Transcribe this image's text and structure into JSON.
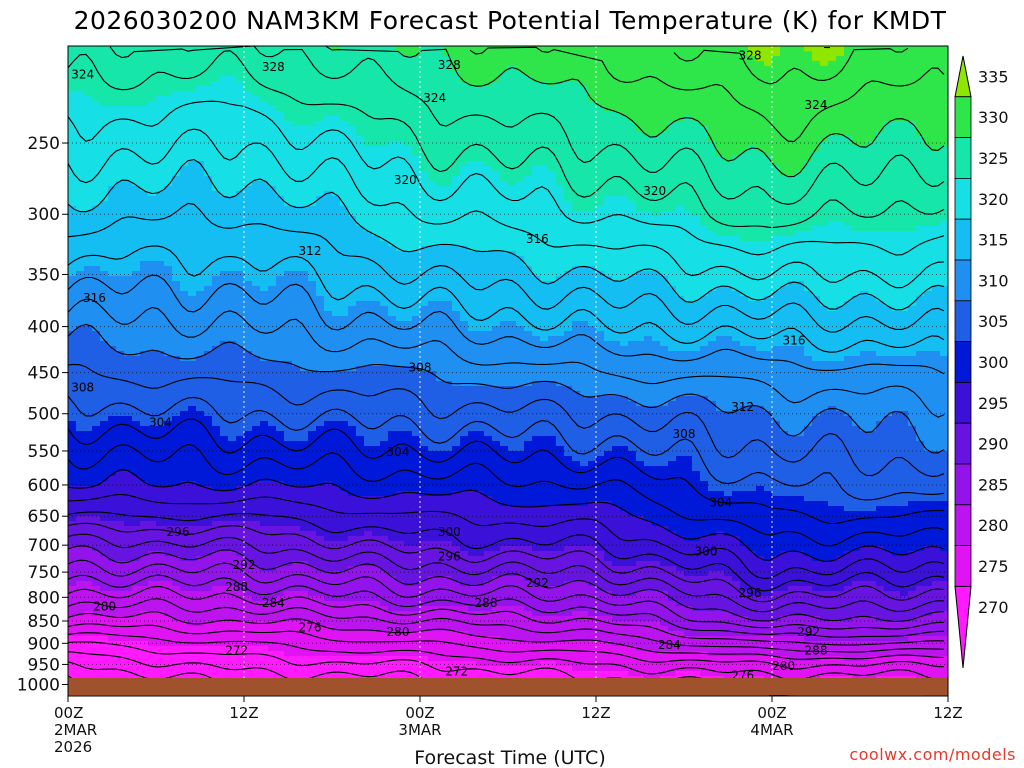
{
  "chart_data": {
    "type": "heatmap",
    "title": "2026030200 NAM3KM Forecast Potential Temperature (K) for KMDT",
    "xlabel": "Forecast Time (UTC)",
    "ylabel": "",
    "y_scale": "pressure (log), hPa, inverted",
    "ylim": [
      1030,
      195
    ],
    "y_ticks": [
      250,
      300,
      350,
      400,
      450,
      500,
      550,
      600,
      650,
      700,
      750,
      800,
      850,
      900,
      950,
      1000
    ],
    "xlim_hours": [
      0,
      60
    ],
    "x_ticks": [
      {
        "hour": 0,
        "line1": "00Z",
        "line2": "2MAR",
        "line3": "2026"
      },
      {
        "hour": 12,
        "line1": "12Z",
        "line2": "",
        "line3": ""
      },
      {
        "hour": 24,
        "line1": "00Z",
        "line2": "3MAR",
        "line3": ""
      },
      {
        "hour": 36,
        "line1": "12Z",
        "line2": "",
        "line3": ""
      },
      {
        "hour": 48,
        "line1": "00Z",
        "line2": "4MAR",
        "line3": ""
      },
      {
        "hour": 60,
        "line1": "12Z",
        "line2": "",
        "line3": ""
      }
    ],
    "colorbar": {
      "levels": [
        335,
        330,
        325,
        320,
        315,
        310,
        305,
        300,
        295,
        290,
        285,
        280,
        275,
        270
      ],
      "colors": [
        "#8fe600",
        "#2ee64a",
        "#16e6aa",
        "#16e0e6",
        "#14bdf2",
        "#1f90f2",
        "#1e5fe6",
        "#0018d8",
        "#3b10d8",
        "#6814e0",
        "#9214ea",
        "#bb14ee",
        "#e014f2",
        "#ff1aff"
      ]
    },
    "contour_interval_K": 2,
    "contour_label_values": [
      324,
      328,
      320,
      316,
      312,
      308,
      304,
      300,
      296,
      292,
      288,
      284,
      280,
      276,
      272
    ],
    "profile_levels_hPa": [
      1000,
      950,
      900,
      850,
      800,
      750,
      700,
      650,
      600,
      550,
      500,
      450,
      400,
      350,
      300,
      250,
      200
    ],
    "profile_hours": [
      0,
      12,
      24,
      36,
      48,
      60
    ],
    "theta_profiles_K": {
      "0": [
        267,
        270,
        274,
        279,
        283,
        287,
        291,
        296,
        300,
        302,
        305,
        308,
        311,
        315,
        319,
        323,
        327
      ],
      "12": [
        270,
        273,
        276,
        280,
        284,
        288,
        292,
        296,
        300,
        303,
        306,
        309,
        312,
        315,
        318,
        322,
        327
      ],
      "24": [
        271,
        274,
        278,
        282,
        287,
        291,
        295,
        298,
        301,
        304,
        307,
        310,
        314,
        318,
        322,
        326,
        330
      ],
      "36": [
        273,
        276,
        280,
        284,
        288,
        292,
        296,
        299,
        302,
        305,
        308,
        312,
        316,
        320,
        324,
        328,
        332
      ],
      "48": [
        274,
        278,
        284,
        290,
        294,
        298,
        301,
        304,
        306,
        308,
        310,
        313,
        317,
        322,
        327,
        331,
        335
      ],
      "60": [
        274,
        278,
        284,
        289,
        293,
        297,
        301,
        304,
        307,
        309,
        311,
        314,
        318,
        322,
        325,
        329,
        333
      ]
    },
    "contour_labels": [
      {
        "value": 324,
        "hour": 1.0,
        "p": 210
      },
      {
        "value": 328,
        "hour": 14.0,
        "p": 206
      },
      {
        "value": 328,
        "hour": 26.0,
        "p": 205
      },
      {
        "value": 324,
        "hour": 25.0,
        "p": 223
      },
      {
        "value": 320,
        "hour": 23.0,
        "p": 275
      },
      {
        "value": 316,
        "hour": 1.8,
        "p": 372
      },
      {
        "value": 312,
        "hour": 16.5,
        "p": 330
      },
      {
        "value": 316,
        "hour": 32.0,
        "p": 320
      },
      {
        "value": 320,
        "hour": 40.0,
        "p": 283
      },
      {
        "value": 328,
        "hour": 46.5,
        "p": 200
      },
      {
        "value": 324,
        "hour": 51.0,
        "p": 227
      },
      {
        "value": 316,
        "hour": 49.5,
        "p": 415
      },
      {
        "value": 312,
        "hour": 46.0,
        "p": 492
      },
      {
        "value": 308,
        "hour": 1.0,
        "p": 468
      },
      {
        "value": 308,
        "hour": 24.0,
        "p": 445
      },
      {
        "value": 304,
        "hour": 6.3,
        "p": 512
      },
      {
        "value": 304,
        "hour": 22.5,
        "p": 552
      },
      {
        "value": 308,
        "hour": 42.0,
        "p": 527
      },
      {
        "value": 304,
        "hour": 44.5,
        "p": 628
      },
      {
        "value": 300,
        "hour": 26.0,
        "p": 678
      },
      {
        "value": 296,
        "hour": 7.5,
        "p": 678
      },
      {
        "value": 296,
        "hour": 26.0,
        "p": 722
      },
      {
        "value": 300,
        "hour": 43.5,
        "p": 712
      },
      {
        "value": 292,
        "hour": 12.0,
        "p": 737
      },
      {
        "value": 292,
        "hour": 32.0,
        "p": 772
      },
      {
        "value": 296,
        "hour": 46.5,
        "p": 792
      },
      {
        "value": 288,
        "hour": 11.5,
        "p": 780
      },
      {
        "value": 288,
        "hour": 28.5,
        "p": 813
      },
      {
        "value": 280,
        "hour": 2.5,
        "p": 820
      },
      {
        "value": 284,
        "hour": 14.0,
        "p": 813
      },
      {
        "value": 276,
        "hour": 16.5,
        "p": 865
      },
      {
        "value": 280,
        "hour": 22.5,
        "p": 875
      },
      {
        "value": 292,
        "hour": 50.5,
        "p": 875
      },
      {
        "value": 284,
        "hour": 41.0,
        "p": 905
      },
      {
        "value": 288,
        "hour": 51.0,
        "p": 918
      },
      {
        "value": 272,
        "hour": 11.5,
        "p": 918
      },
      {
        "value": 280,
        "hour": 48.8,
        "p": 955
      },
      {
        "value": 272,
        "hour": 26.5,
        "p": 968
      },
      {
        "value": 276,
        "hour": 46.0,
        "p": 978
      }
    ]
  },
  "watermark": "coolwx.com/models",
  "colors": {
    "ground": "#a0522d",
    "watermark": "#e8382a",
    "grid": "#ffffff"
  }
}
